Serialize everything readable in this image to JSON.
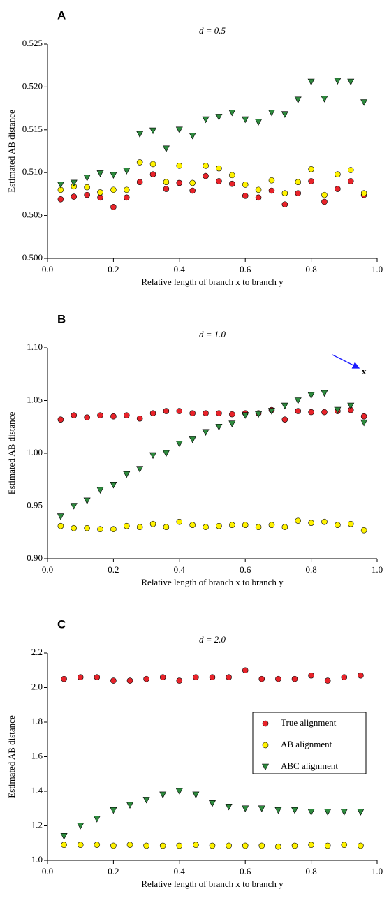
{
  "chart_data": [
    {
      "type": "scatter",
      "panel": "A",
      "title": "d = 0.5",
      "xlabel": "Relative length of branch x to branch y",
      "ylabel": "Estimated AB distance",
      "x": [
        0.04,
        0.08,
        0.12,
        0.16,
        0.2,
        0.24,
        0.28,
        0.32,
        0.36,
        0.4,
        0.44,
        0.48,
        0.52,
        0.56,
        0.6,
        0.64,
        0.68,
        0.72,
        0.76,
        0.8,
        0.84,
        0.88,
        0.92,
        0.96
      ],
      "xlim": [
        0,
        1
      ],
      "xticks": [
        {
          "value": 0,
          "label": "0.0"
        },
        0.2,
        0.4,
        0.6,
        0.8,
        {
          "value": 1,
          "label": "1.0"
        }
      ],
      "ylim": [
        0.5,
        0.525
      ],
      "yticks": [
        {
          "value": 0.5,
          "label": "0.500"
        },
        0.505,
        {
          "value": 0.51,
          "label": "0.510"
        },
        0.515,
        {
          "value": 0.52,
          "label": "0.520"
        },
        0.525
      ],
      "series": [
        {
          "color": "#e8232a",
          "marker": "circle",
          "values": [
            0.5069,
            0.5072,
            0.5074,
            0.5071,
            0.506,
            0.5071,
            0.5089,
            0.5098,
            0.5081,
            0.5088,
            0.5079,
            0.5096,
            0.509,
            0.5087,
            0.5073,
            0.5071,
            0.5079,
            0.5063,
            0.5076,
            0.509,
            0.5066,
            0.5081,
            0.509,
            0.5074
          ]
        },
        {
          "color": "#fff200",
          "marker": "circle",
          "values": [
            0.508,
            0.5084,
            0.5083,
            0.5077,
            0.508,
            0.508,
            0.5112,
            0.511,
            0.5089,
            0.5108,
            0.5088,
            0.5108,
            0.5105,
            0.5097,
            0.5086,
            0.508,
            0.5091,
            0.5076,
            0.5089,
            0.5104,
            0.5074,
            0.5098,
            0.5103,
            0.5076
          ]
        },
        {
          "color": "#2e8b3e",
          "marker": "triangle-down",
          "values": [
            0.5086,
            0.5088,
            0.5094,
            0.5099,
            0.5097,
            0.5102,
            0.5145,
            0.5149,
            0.5128,
            0.515,
            0.5143,
            0.5162,
            0.5165,
            0.517,
            0.5162,
            0.5159,
            0.517,
            0.5168,
            0.5185,
            0.5206,
            0.5186,
            0.5207,
            0.5206,
            0.5182
          ]
        }
      ]
    },
    {
      "type": "scatter",
      "panel": "B",
      "title": "d = 1.0",
      "annotation": "x",
      "xlabel": "Relative length of branch x to branch y",
      "ylabel": "Estimated AB distance",
      "x": [
        0.04,
        0.08,
        0.12,
        0.16,
        0.2,
        0.24,
        0.28,
        0.32,
        0.36,
        0.4,
        0.44,
        0.48,
        0.52,
        0.56,
        0.6,
        0.64,
        0.68,
        0.72,
        0.76,
        0.8,
        0.84,
        0.88,
        0.92,
        0.96
      ],
      "xlim": [
        0,
        1
      ],
      "xticks": [
        {
          "value": 0,
          "label": "0.0"
        },
        0.2,
        0.4,
        0.6,
        0.8,
        {
          "value": 1,
          "label": "1.0"
        }
      ],
      "ylim": [
        0.9,
        1.1
      ],
      "yticks": [
        {
          "value": 0.9,
          "label": "0.90"
        },
        0.95,
        {
          "value": 1,
          "label": "1.00"
        },
        1.05,
        {
          "value": 1.1,
          "label": "1.10"
        }
      ],
      "series": [
        {
          "color": "#e8232a",
          "marker": "circle",
          "values": [
            1.032,
            1.036,
            1.034,
            1.036,
            1.035,
            1.036,
            1.033,
            1.038,
            1.04,
            1.04,
            1.038,
            1.038,
            1.038,
            1.037,
            1.038,
            1.038,
            1.041,
            1.032,
            1.04,
            1.039,
            1.039,
            1.04,
            1.041,
            1.035
          ]
        },
        {
          "color": "#fff200",
          "marker": "circle",
          "values": [
            0.931,
            0.929,
            0.929,
            0.928,
            0.928,
            0.931,
            0.93,
            0.933,
            0.93,
            0.935,
            0.932,
            0.93,
            0.931,
            0.932,
            0.932,
            0.93,
            0.932,
            0.93,
            0.936,
            0.934,
            0.935,
            0.932,
            0.933,
            0.927
          ]
        },
        {
          "color": "#2e8b3e",
          "marker": "triangle-down",
          "values": [
            0.94,
            0.95,
            0.955,
            0.965,
            0.97,
            0.98,
            0.985,
            0.998,
            1.0,
            1.009,
            1.013,
            1.02,
            1.025,
            1.028,
            1.036,
            1.037,
            1.04,
            1.045,
            1.05,
            1.055,
            1.057,
            1.041,
            1.045,
            1.029
          ]
        }
      ]
    },
    {
      "type": "scatter",
      "panel": "C",
      "title": "d = 2.0",
      "xlabel": "Relative length of branch x to branch y",
      "ylabel": "Estimated AB distance",
      "x": [
        0.05,
        0.1,
        0.15,
        0.2,
        0.25,
        0.3,
        0.35,
        0.4,
        0.45,
        0.5,
        0.55,
        0.6,
        0.65,
        0.7,
        0.75,
        0.8,
        0.85,
        0.9,
        0.95
      ],
      "xlim": [
        0,
        1
      ],
      "xticks": [
        {
          "value": 0,
          "label": "0.0"
        },
        0.2,
        0.4,
        0.6,
        0.8,
        {
          "value": 1,
          "label": "1.0"
        }
      ],
      "ylim": [
        1.0,
        2.2
      ],
      "yticks": [
        {
          "value": 1,
          "label": "1.0"
        },
        1.2,
        1.4,
        1.6,
        1.8,
        {
          "value": 2,
          "label": "2.0"
        },
        2.2
      ],
      "legend": "center right",
      "series": [
        {
          "name": "True alignment",
          "color": "#e8232a",
          "marker": "circle",
          "values": [
            2.05,
            2.06,
            2.06,
            2.04,
            2.04,
            2.05,
            2.06,
            2.04,
            2.06,
            2.06,
            2.06,
            2.1,
            2.05,
            2.05,
            2.05,
            2.07,
            2.04,
            2.06,
            2.07
          ]
        },
        {
          "name": "AB alignment",
          "color": "#fff200",
          "marker": "circle",
          "values": [
            1.09,
            1.09,
            1.09,
            1.085,
            1.09,
            1.085,
            1.085,
            1.085,
            1.09,
            1.085,
            1.085,
            1.085,
            1.085,
            1.08,
            1.085,
            1.09,
            1.085,
            1.09,
            1.085
          ]
        },
        {
          "name": "ABC alignment",
          "color": "#2e8b3e",
          "marker": "triangle-down",
          "values": [
            1.14,
            1.2,
            1.24,
            1.29,
            1.32,
            1.35,
            1.38,
            1.4,
            1.38,
            1.33,
            1.31,
            1.3,
            1.3,
            1.29,
            1.29,
            1.28,
            1.28,
            1.28,
            1.28
          ]
        }
      ]
    }
  ]
}
